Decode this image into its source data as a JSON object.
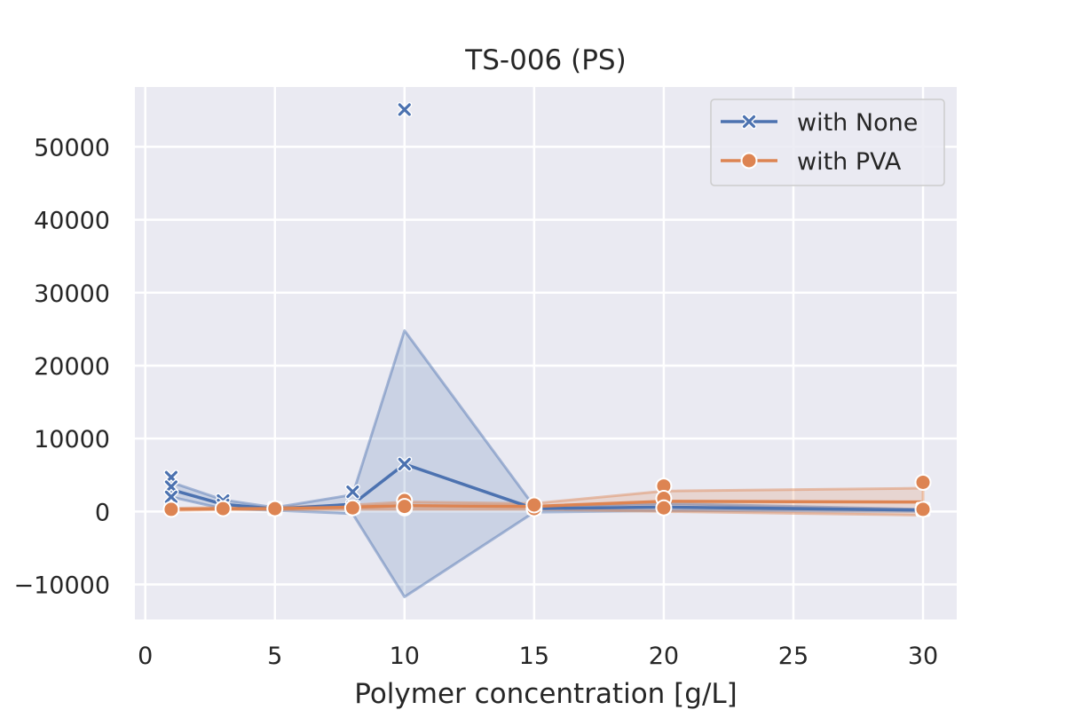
{
  "chart_data": {
    "type": "line",
    "title": "TS-006 (PS)",
    "xlabel": "Polymer concentration [g/L]",
    "ylabel": "",
    "xlim": [
      -0.4,
      31.3
    ],
    "ylim": [
      -14800,
      58200
    ],
    "xticks": [
      0,
      5,
      10,
      15,
      20,
      25,
      30
    ],
    "yticks": [
      -10000,
      0,
      10000,
      20000,
      30000,
      40000,
      50000
    ],
    "xtick_labels": [
      "0",
      "5",
      "10",
      "15",
      "20",
      "25",
      "30"
    ],
    "ytick_labels": [
      "−10000",
      "0",
      "10000",
      "20000",
      "30000",
      "40000",
      "50000"
    ],
    "grid": true,
    "legend_position": "top-right",
    "series": [
      {
        "name": "with None",
        "color": "#4c72b0",
        "marker": "x",
        "x": [
          1,
          3,
          5,
          8,
          10,
          15,
          20,
          30
        ],
        "mean": [
          3000,
          1000,
          350,
          1000,
          6500,
          400,
          600,
          200
        ],
        "ci_low": [
          2000,
          400,
          150,
          -300,
          -11700,
          -100,
          100,
          0
        ],
        "ci_high": [
          4000,
          1600,
          550,
          2300,
          24800,
          700,
          1100,
          300
        ],
        "points": [
          [
            1,
            4700
          ],
          [
            1,
            3400
          ],
          [
            1,
            2000
          ],
          [
            3,
            1500
          ],
          [
            3,
            900
          ],
          [
            5,
            400
          ],
          [
            8,
            2700
          ],
          [
            8,
            600
          ],
          [
            10,
            55100
          ],
          [
            10,
            6500
          ],
          [
            10,
            1100
          ],
          [
            15,
            500
          ],
          [
            20,
            700
          ],
          [
            30,
            300
          ]
        ]
      },
      {
        "name": "with PVA",
        "color": "#dd8452",
        "marker": "o",
        "x": [
          1,
          3,
          5,
          8,
          10,
          15,
          20,
          30
        ],
        "mean": [
          300,
          400,
          400,
          600,
          800,
          700,
          1400,
          1300
        ],
        "ci_low": [
          150,
          250,
          250,
          300,
          300,
          300,
          0,
          -500
        ],
        "ci_high": [
          450,
          550,
          550,
          900,
          1300,
          1100,
          2800,
          3200
        ],
        "points": [
          [
            1,
            300
          ],
          [
            3,
            400
          ],
          [
            5,
            400
          ],
          [
            8,
            500
          ],
          [
            10,
            500
          ],
          [
            10,
            1500
          ],
          [
            10,
            700
          ],
          [
            15,
            400
          ],
          [
            15,
            900
          ],
          [
            20,
            3500
          ],
          [
            20,
            1800
          ],
          [
            20,
            500
          ],
          [
            30,
            4000
          ],
          [
            30,
            300
          ]
        ]
      }
    ]
  }
}
